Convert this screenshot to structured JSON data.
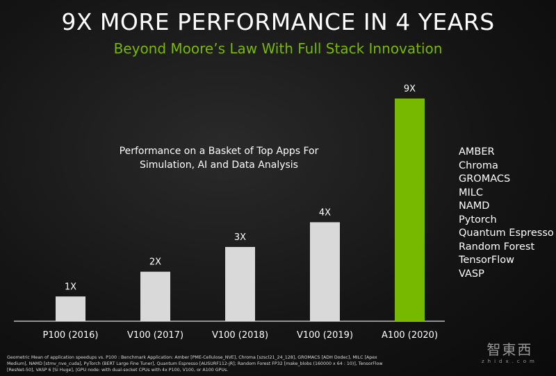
{
  "title": "9X MORE PERFORMANCE IN 4 YEARS",
  "subtitle": "Beyond Moore’s Law With Full Stack Innovation",
  "basket_text": [
    "Performance on a Basket of Top Apps For",
    "Simulation, AI and Data Analysis"
  ],
  "apps": [
    "AMBER",
    "Chroma",
    "GROMACS",
    "MILC",
    "NAMD",
    "Pytorch",
    "Quantum Espresso",
    "Random Forest",
    "TensorFlow",
    "VASP"
  ],
  "footnote": "Geometric Mean of application speedups vs. P100 : Benchmark Application: Amber [PME-Cellulose_NVE], Chroma [szscl21_24_128], GROMACS  [ADH Dodec], MILC [Apex Medium], NAMD [stmv_nve_cuda], PyTorch (BERT Large Fine Tuner],  Quantum Espresso [AUSURF112-jR]; Random Forest FP32 [make_blobs (160000 x 64 : 10)], TensorFlow [ResNet-50], VASP 6  [Si Huge], |GPU node: with dual-socket CPUs with 4x P100, V100, or A100 GPUs.",
  "watermark": {
    "cn": "智東西",
    "en": "zhidx.com"
  },
  "chart_data": {
    "type": "bar",
    "categories": [
      "P100 (2016)",
      "V100 (2017)",
      "V100 (2018)",
      "V100 (2019)",
      "A100 (2020)"
    ],
    "values": [
      1,
      2,
      3,
      4,
      9
    ],
    "data_labels": [
      "1X",
      "2X",
      "3X",
      "4X",
      "9X"
    ],
    "colors": [
      "#d9d9d9",
      "#d9d9d9",
      "#d9d9d9",
      "#d9d9d9",
      "#76b900"
    ],
    "ylim": [
      0,
      9
    ],
    "grid": false
  }
}
